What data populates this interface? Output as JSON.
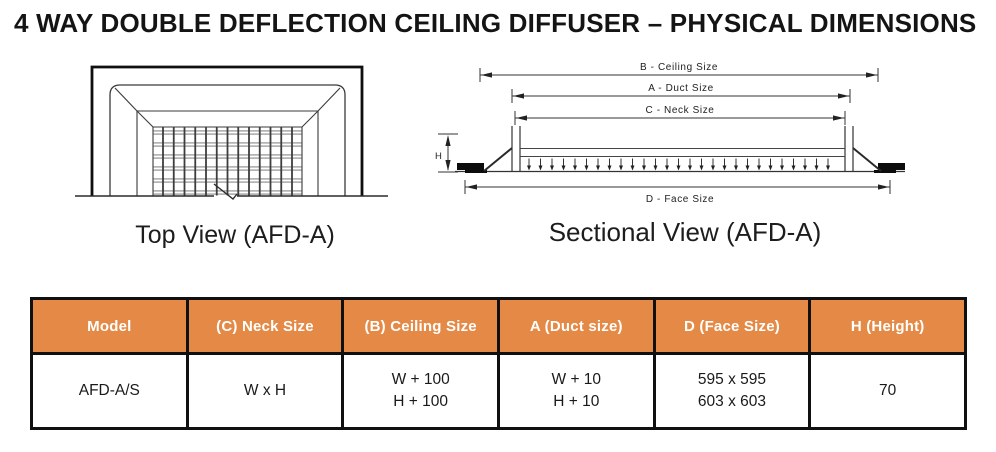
{
  "title": "4 WAY DOUBLE DEFLECTION CEILING DIFFUSER – PHYSICAL DIMENSIONS",
  "diagrams": {
    "top_view": {
      "caption": "Top View (AFD-A)"
    },
    "sectional_view": {
      "caption": "Sectional View (AFD-A)",
      "dim_labels": {
        "b": "B - Ceiling Size",
        "a": "A - Duct Size",
        "c": "C - Neck Size",
        "d": "D - Face Size",
        "h": "H"
      }
    }
  },
  "table": {
    "header_bg": "#E58A46",
    "header_text_color": "#FFFFFF",
    "border_color": "#101010",
    "headers": [
      "Model",
      "(C) Neck Size",
      "(B) Ceiling Size",
      "A (Duct size)",
      "D (Face Size)",
      "H (Height)"
    ],
    "rows": [
      [
        [
          "AFD-A/S"
        ],
        [
          "W x H"
        ],
        [
          "W + 100",
          "H + 100"
        ],
        [
          "W + 10",
          "H + 10"
        ],
        [
          "595 x 595",
          "603 x 603"
        ],
        [
          "70"
        ]
      ]
    ]
  }
}
